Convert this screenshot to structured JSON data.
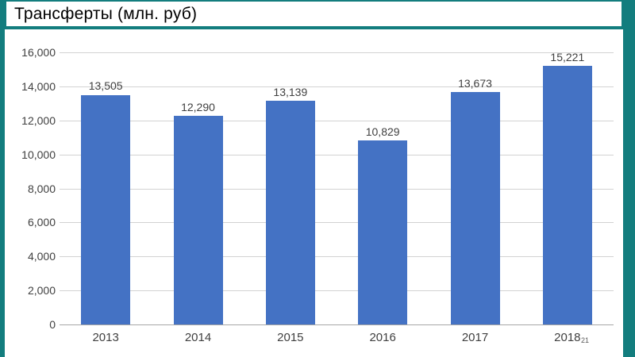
{
  "title": "Трансферты (млн. руб)",
  "page_number": "21",
  "frame": {
    "accent_color": "#137d7e",
    "background_color": "#ffffff"
  },
  "chart_data": {
    "type": "bar",
    "title": "Трансферты (млн. руб)",
    "xlabel": "",
    "ylabel": "",
    "categories": [
      "2013",
      "2014",
      "2015",
      "2016",
      "2017",
      "2018"
    ],
    "values": [
      13505,
      12290,
      13139,
      10829,
      13673,
      15221
    ],
    "value_labels": [
      "13,505",
      "12,290",
      "13,139",
      "10,829",
      "13,673",
      "15,221"
    ],
    "ylim": [
      0,
      16000
    ],
    "ytick_step": 2000,
    "ytick_labels": [
      "0",
      "2,000",
      "4,000",
      "6,000",
      "8,000",
      "10,000",
      "12,000",
      "14,000",
      "16,000"
    ],
    "grid": true,
    "legend": false,
    "bar_color": "#4472c4",
    "gridline_color": "#d2d2d2",
    "axis_line_color": "#a6a6a6",
    "label_color": "#404040"
  }
}
